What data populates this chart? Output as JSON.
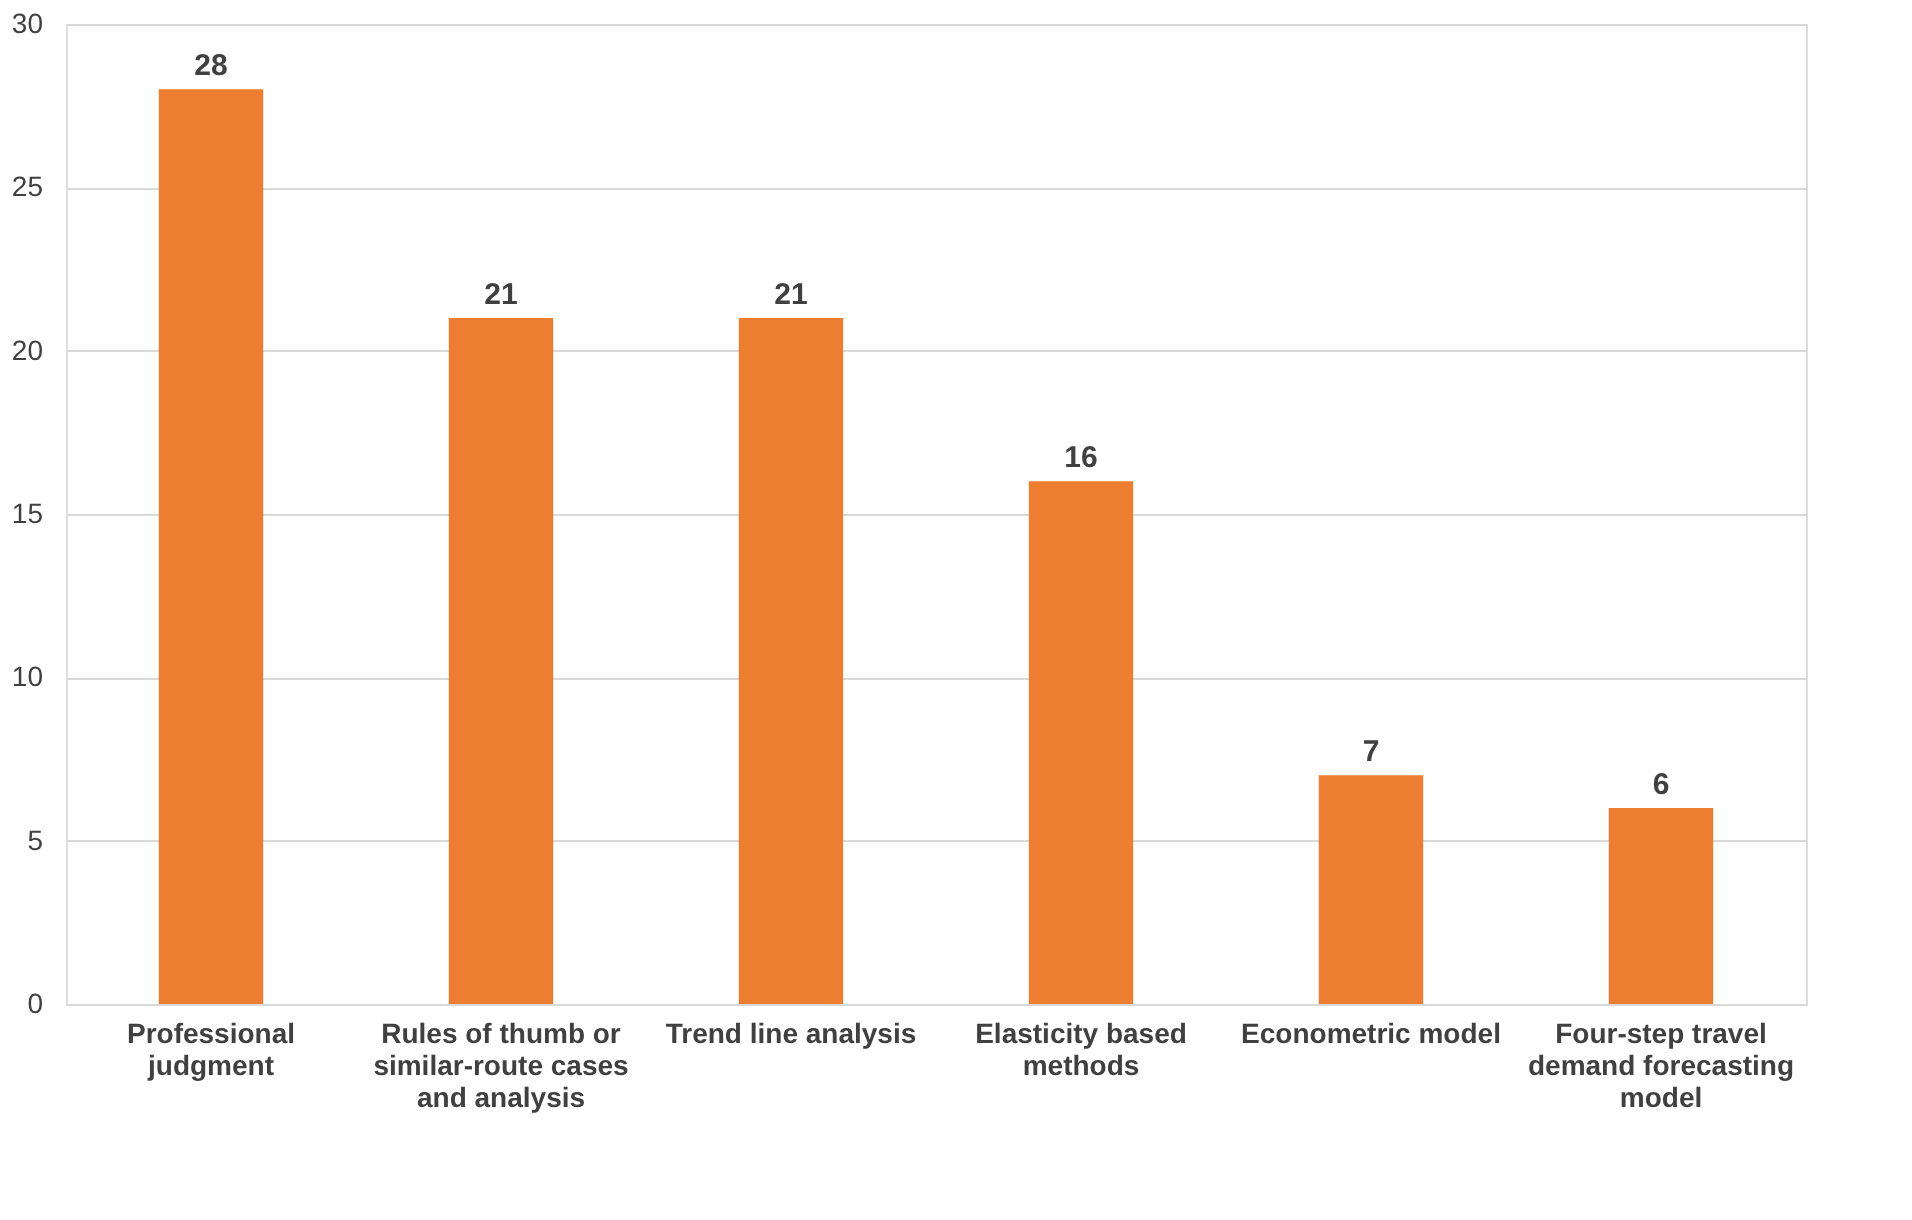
{
  "chart_data": {
    "type": "bar",
    "categories": [
      "Professional judgment",
      "Rules of thumb or similar-route cases and analysis",
      "Trend line analysis",
      "Elasticity based methods",
      "Econometric model",
      "Four-step travel demand forecasting model"
    ],
    "values": [
      28,
      21,
      21,
      16,
      7,
      6
    ],
    "color": "#ed7d31",
    "ylim": [
      0,
      30
    ],
    "yticks": [
      0,
      5,
      10,
      15,
      20,
      25,
      30
    ],
    "grid": "y",
    "data_labels": true
  }
}
